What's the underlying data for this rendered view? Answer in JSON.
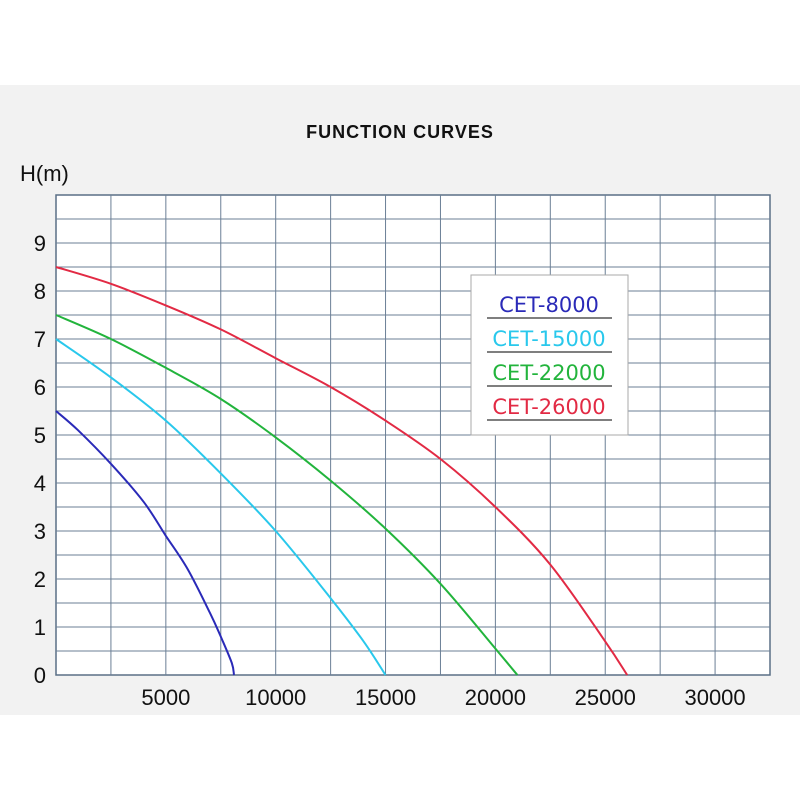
{
  "chart_data": {
    "type": "line",
    "title": "FUNCTION CURVES",
    "ylabel": "H(m)",
    "xlabel": "",
    "xlim": [
      0,
      32500
    ],
    "ylim": [
      0,
      10
    ],
    "grid": true,
    "legend_position": "top-right",
    "x_ticks": [
      "5000",
      "10000",
      "15000",
      "20000",
      "25000",
      "30000"
    ],
    "x_tick_values": [
      5000,
      10000,
      15000,
      20000,
      25000,
      30000
    ],
    "y_ticks": [
      "0",
      "1",
      "2",
      "3",
      "4",
      "5",
      "6",
      "7",
      "8",
      "9"
    ],
    "y_tick_values": [
      0,
      1,
      2,
      3,
      4,
      5,
      6,
      7,
      8,
      9
    ],
    "series": [
      {
        "name": "CET-8000",
        "color": "#2a2ab8",
        "x": [
          0,
          1000,
          2500,
          4000,
          5000,
          6000,
          7000,
          7500,
          8000,
          8100
        ],
        "y": [
          5.5,
          5.1,
          4.4,
          3.6,
          2.9,
          2.2,
          1.3,
          0.8,
          0.25,
          0
        ]
      },
      {
        "name": "CET-15000",
        "color": "#29c8ec",
        "x": [
          0,
          2500,
          5000,
          7500,
          10000,
          12500,
          14000,
          15000
        ],
        "y": [
          7.0,
          6.2,
          5.3,
          4.2,
          3.0,
          1.6,
          0.7,
          0
        ]
      },
      {
        "name": "CET-22000",
        "color": "#22b43c",
        "x": [
          0,
          2500,
          5000,
          7500,
          10000,
          12500,
          15000,
          17500,
          20000,
          21000
        ],
        "y": [
          7.5,
          7.0,
          6.4,
          5.75,
          4.95,
          4.05,
          3.05,
          1.9,
          0.55,
          0
        ]
      },
      {
        "name": "CET-26000",
        "color": "#e22a44",
        "x": [
          0,
          2500,
          5000,
          7500,
          10000,
          12500,
          15000,
          17500,
          20000,
          22500,
          25000,
          26000
        ],
        "y": [
          8.5,
          8.15,
          7.7,
          7.2,
          6.6,
          6.0,
          5.3,
          4.5,
          3.5,
          2.3,
          0.7,
          0
        ]
      }
    ]
  }
}
